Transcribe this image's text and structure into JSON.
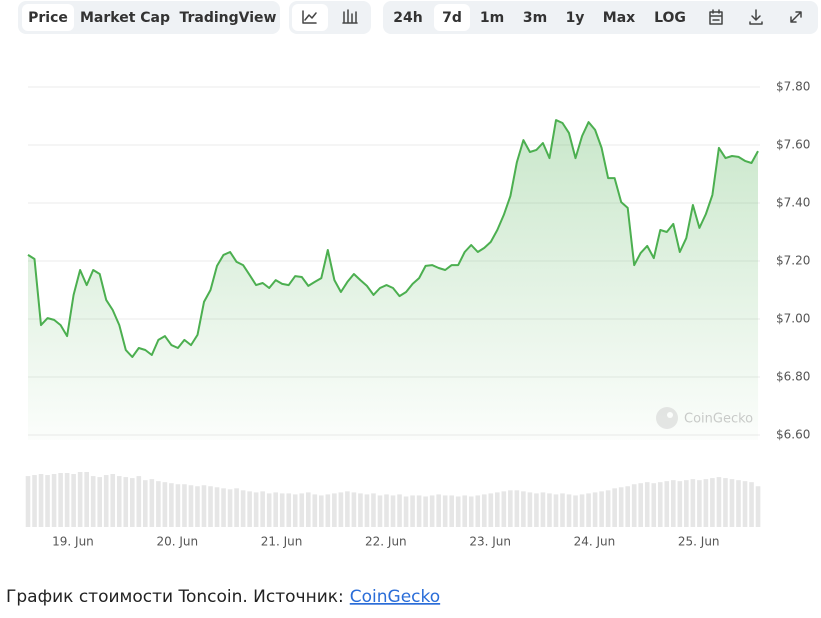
{
  "ui": {
    "tabs": [
      {
        "label": "Price",
        "active": true
      },
      {
        "label": "Market Cap",
        "active": false
      },
      {
        "label": "TradingView",
        "active": false
      }
    ],
    "ranges": [
      {
        "label": "24h",
        "active": false
      },
      {
        "label": "7d",
        "active": true
      },
      {
        "label": "1m",
        "active": false
      },
      {
        "label": "3m",
        "active": false
      },
      {
        "label": "1y",
        "active": false
      },
      {
        "label": "Max",
        "active": false
      },
      {
        "label": "LOG",
        "active": false
      }
    ],
    "watermark": "CoinGecko",
    "caption": {
      "text": "График стоимости Toncoin. Источник:",
      "link": "CoinGecko"
    }
  },
  "chart_data": {
    "type": "area",
    "color": "#4caf50",
    "volume_color": "#e6e6e6",
    "xlim": [
      0,
      112.3
    ],
    "xticks": [
      {
        "value": 6.9,
        "label": "19. Jun"
      },
      {
        "value": 22.9,
        "label": "20. Jun"
      },
      {
        "value": 38.9,
        "label": "21. Jun"
      },
      {
        "value": 54.9,
        "label": "22. Jun"
      },
      {
        "value": 70.9,
        "label": "23. Jun"
      },
      {
        "value": 86.9,
        "label": "24. Jun"
      },
      {
        "value": 102.9,
        "label": "25. Jun"
      }
    ],
    "ylim": [
      6.6,
      7.8
    ],
    "yticks": [
      {
        "value": 6.6,
        "label": "$6.60"
      },
      {
        "value": 6.8,
        "label": "$6.80"
      },
      {
        "value": 7.0,
        "label": "$7.00"
      },
      {
        "value": 7.2,
        "label": "$7.20"
      },
      {
        "value": 7.4,
        "label": "$7.40"
      },
      {
        "value": 7.6,
        "label": "$7.60"
      },
      {
        "value": 7.8,
        "label": "$7.80"
      }
    ],
    "grid": true,
    "values": [
      7.221,
      7.207,
      6.979,
      7.003,
      6.997,
      6.979,
      6.941,
      7.083,
      7.169,
      7.117,
      7.169,
      7.155,
      7.066,
      7.031,
      6.979,
      6.893,
      6.869,
      6.9,
      6.893,
      6.876,
      6.928,
      6.941,
      6.91,
      6.9,
      6.928,
      6.91,
      6.945,
      7.059,
      7.1,
      7.183,
      7.221,
      7.231,
      7.197,
      7.186,
      7.152,
      7.117,
      7.124,
      7.107,
      7.134,
      7.121,
      7.117,
      7.148,
      7.145,
      7.114,
      7.128,
      7.141,
      7.238,
      7.134,
      7.093,
      7.128,
      7.155,
      7.134,
      7.114,
      7.083,
      7.107,
      7.117,
      7.107,
      7.079,
      7.093,
      7.121,
      7.141,
      7.183,
      7.186,
      7.176,
      7.169,
      7.186,
      7.186,
      7.231,
      7.255,
      7.231,
      7.245,
      7.266,
      7.307,
      7.359,
      7.424,
      7.541,
      7.617,
      7.576,
      7.583,
      7.607,
      7.555,
      7.686,
      7.676,
      7.641,
      7.555,
      7.631,
      7.679,
      7.652,
      7.59,
      7.486,
      7.486,
      7.403,
      7.383,
      7.186,
      7.228,
      7.252,
      7.21,
      7.307,
      7.3,
      7.328,
      7.231,
      7.279,
      7.393,
      7.314,
      7.362,
      7.428,
      7.59,
      7.555,
      7.562,
      7.559,
      7.545,
      7.538,
      7.579
    ],
    "volume": [
      50,
      51,
      52,
      51,
      52,
      53,
      53,
      52,
      54,
      54,
      50,
      49,
      51,
      52,
      50,
      49,
      48,
      50,
      46,
      47,
      45,
      44,
      43,
      42,
      42,
      41,
      40,
      41,
      40,
      39,
      38,
      37,
      38,
      36,
      35,
      34,
      35,
      33,
      34,
      33,
      33,
      32,
      33,
      34,
      32,
      31,
      32,
      33,
      34,
      35,
      34,
      33,
      32,
      33,
      31,
      32,
      31,
      32,
      30,
      31,
      31,
      30,
      31,
      32,
      31,
      31,
      30,
      31,
      30,
      31,
      32,
      33,
      34,
      35,
      36,
      36,
      35,
      34,
      33,
      34,
      33,
      32,
      33,
      32,
      31,
      32,
      33,
      34,
      35,
      36,
      38,
      39,
      40,
      42,
      43,
      44,
      43,
      44,
      45,
      46,
      45,
      46,
      47,
      46,
      47,
      48,
      49,
      48,
      47,
      46,
      45,
      44,
      40
    ]
  }
}
